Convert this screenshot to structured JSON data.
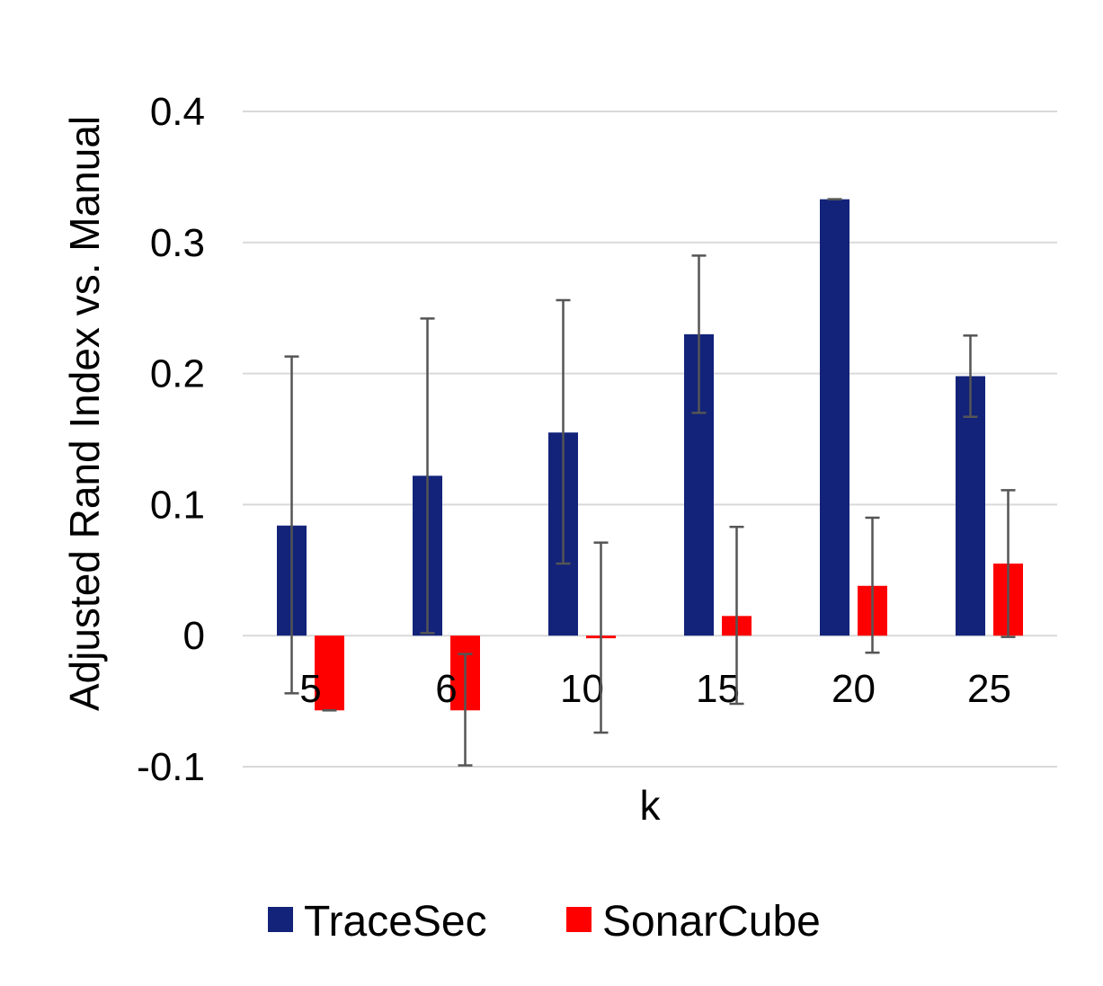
{
  "chart_data": {
    "type": "bar",
    "xlabel": "k",
    "ylabel": "Adjusted Rand Index vs. Manual",
    "categories": [
      "5",
      "6",
      "10",
      "15",
      "20",
      "25"
    ],
    "ylim": [
      -0.1,
      0.4
    ],
    "yticks": [
      {
        "value": 0.4,
        "label": "0.4"
      },
      {
        "value": 0.3,
        "label": "0.3"
      },
      {
        "value": 0.2,
        "label": "0.2"
      },
      {
        "value": 0.1,
        "label": "0.1"
      },
      {
        "value": 0.0,
        "label": "0"
      },
      {
        "value": -0.1,
        "label": "-0.1"
      }
    ],
    "grid": true,
    "legend_position": "bottom",
    "series": [
      {
        "name": "TraceSec",
        "color": "#13237A",
        "values": [
          0.084,
          0.122,
          0.155,
          0.23,
          0.333,
          0.198
        ],
        "error_low": [
          -0.044,
          0.002,
          0.055,
          0.17,
          0.333,
          0.167
        ],
        "error_high": [
          0.213,
          0.242,
          0.256,
          0.29,
          0.333,
          0.229
        ]
      },
      {
        "name": "SonarCube",
        "color": "#FF0000",
        "values": [
          -0.057,
          -0.057,
          -0.002,
          0.015,
          0.038,
          0.055
        ],
        "error_low": [
          -0.057,
          -0.099,
          -0.074,
          -0.052,
          -0.013,
          -0.001
        ],
        "error_high": [
          -0.057,
          -0.014,
          0.071,
          0.083,
          0.09,
          0.111
        ]
      }
    ],
    "error_bar_color": "#555555",
    "grid_color": "#D9D9D9"
  }
}
